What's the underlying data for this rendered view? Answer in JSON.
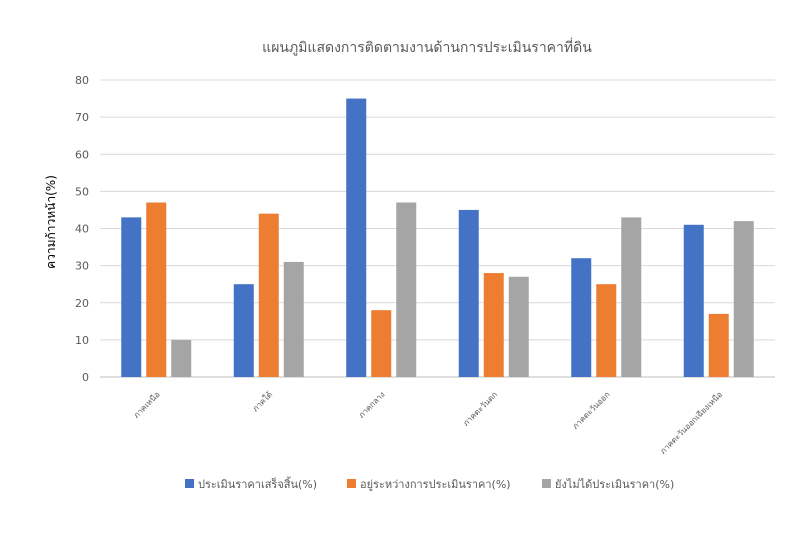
{
  "chart_data": {
    "type": "bar",
    "title": "แผนภูมิแสดงการติดตามงานด้านการประเมินราคาที่ดิน",
    "xlabel": "",
    "ylabel": "ความก้าวหน้า(%)",
    "ylim": [
      0,
      80
    ],
    "yticks": [
      0,
      10,
      20,
      30,
      40,
      50,
      60,
      70,
      80
    ],
    "grid": true,
    "legend_position": "bottom",
    "categories": [
      "ภาคเหนือ",
      "ภาคใต้",
      "ภาคกลาง",
      "ภาคตะวันตก",
      "ภาคตะวันออก",
      "ภาคตะวันออกเฉียงเหนือ"
    ],
    "series": [
      {
        "name": "ประเมินราคาเสร็จสิ้น(%)",
        "color": "#4472c4",
        "values": [
          43,
          25,
          75,
          45,
          32,
          41
        ]
      },
      {
        "name": "อยู่ระหว่างการประเมินราคา(%)",
        "color": "#ed7d31",
        "values": [
          47,
          44,
          18,
          28,
          25,
          17
        ]
      },
      {
        "name": "ยังไม่ได้ประเมินราคา(%)",
        "color": "#a5a5a5",
        "values": [
          10,
          31,
          47,
          27,
          43,
          42
        ]
      }
    ]
  }
}
